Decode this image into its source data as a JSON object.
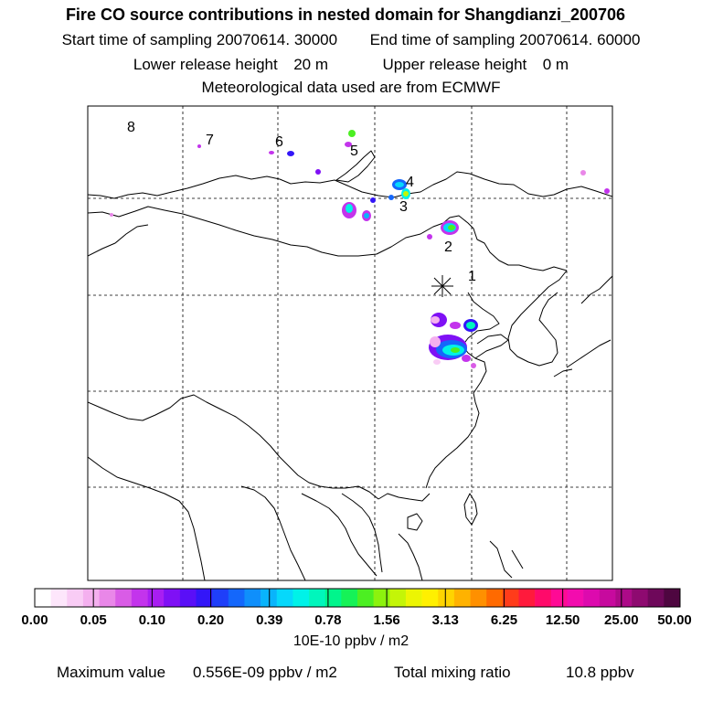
{
  "header": {
    "title": "Fire CO source contributions in nested domain for Shangdianzi_200706",
    "start_label": "Start time of sampling",
    "start_value": "20070614. 30000",
    "end_label": "End time of sampling",
    "end_value": "20070614. 60000",
    "lower_label": "Lower release height",
    "lower_value": "20 m",
    "upper_label": "Upper release height",
    "upper_value": "0 m",
    "meteo": "Meteorological data used are from ECMWF"
  },
  "map": {
    "markers": [
      {
        "label": "1"
      },
      {
        "label": "2"
      },
      {
        "label": "3"
      },
      {
        "label": "4"
      },
      {
        "label": "5"
      },
      {
        "label": "6"
      },
      {
        "label": "7"
      },
      {
        "label": "8"
      }
    ],
    "receptor_symbol": "asterisk"
  },
  "legend": {
    "colors": [
      "#ffffff",
      "#fde6fb",
      "#f9ccf5",
      "#f4b0ef",
      "#e987e8",
      "#d95ce6",
      "#c334ec",
      "#a81ef2",
      "#7f10f5",
      "#5a0ff7",
      "#3316f8",
      "#1f3ff9",
      "#1467fb",
      "#0f8ffb",
      "#09b4fb",
      "#06d8fb",
      "#00f2e8",
      "#00f6bc",
      "#00f58c",
      "#16f257",
      "#4cef22",
      "#8cf20e",
      "#c4f507",
      "#ecf503",
      "#fff000",
      "#ffd400",
      "#ffb200",
      "#ff9000",
      "#ff6a00",
      "#ff3c1a",
      "#ff1a3c",
      "#ff0a6a",
      "#ff0a95",
      "#f30cae",
      "#dd0aae",
      "#c70a9e",
      "#ad0a88",
      "#8e0a70",
      "#6e085a",
      "#4e0640"
    ],
    "tick_labels": [
      "0.00",
      "0.05",
      "0.10",
      "0.20",
      "0.39",
      "0.78",
      "1.56",
      "3.13",
      "6.25",
      "12.50",
      "25.00",
      "50.00"
    ],
    "unit": "10E-10 ppbv / m2"
  },
  "stats": {
    "max_label": "Maximum value",
    "max_value": "0.556E-09 ppbv / m2",
    "total_label": "Total mixing ratio",
    "total_value": "10.8 ppbv"
  }
}
